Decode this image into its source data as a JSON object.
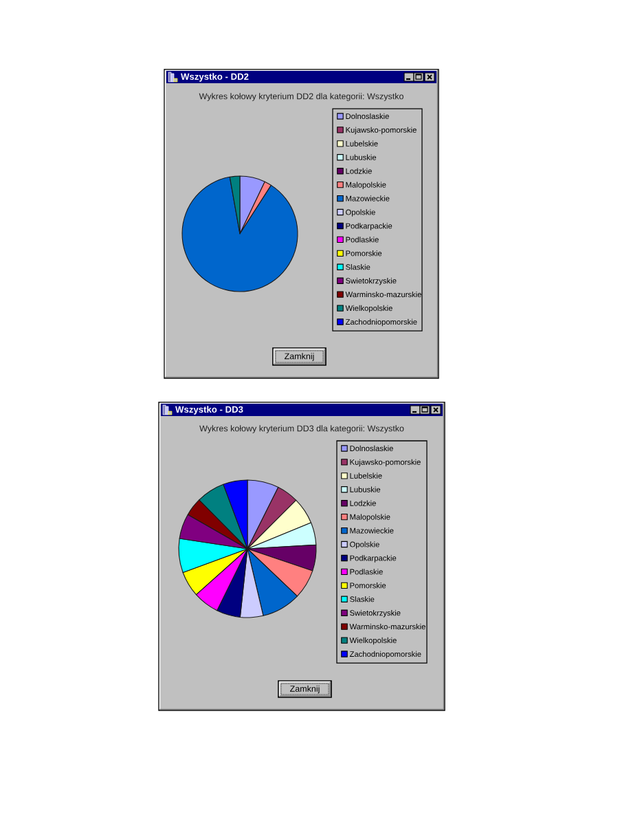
{
  "chart_data": [
    {
      "type": "pie",
      "title": "Wykres kołowy kryterium DD2 dla kategorii: Wszystko",
      "annotations": [
        "Wszystko - DD2",
        "Zamknij"
      ],
      "legend": "right",
      "categories": [
        "Dolnoslaskie",
        "Kujawsko-pomorskie",
        "Lubelskie",
        "Lubuskie",
        "Lodzkie",
        "Malopolskie",
        "Mazowieckie",
        "Opolskie",
        "Podkarpackie",
        "Podlaskie",
        "Pomorskie",
        "Slaskie",
        "Swietokrzyskie",
        "Warminsko-mazurskie",
        "Wielkopolskie",
        "Zachodniopomorskie"
      ],
      "values": [
        7.1,
        0,
        0,
        0,
        0,
        2.0,
        88.1,
        0,
        0,
        0,
        0,
        0,
        0,
        0,
        2.8,
        0
      ],
      "colors": [
        "#9999ff",
        "#993366",
        "#ffffcc",
        "#ccffff",
        "#660066",
        "#ff8080",
        "#0066cc",
        "#ccccff",
        "#000080",
        "#ff00ff",
        "#ffff00",
        "#00ffff",
        "#800080",
        "#800000",
        "#008080",
        "#0000ff"
      ]
    },
    {
      "type": "pie",
      "title": "Wykres kołowy kryterium DD3 dla kategorii: Wszystko",
      "annotations": [
        "Wszystko - DD3",
        "Zamknij"
      ],
      "legend": "right",
      "categories": [
        "Dolnoslaskie",
        "Kujawsko-pomorskie",
        "Lubelskie",
        "Lubuskie",
        "Lodzkie",
        "Malopolskie",
        "Mazowieckie",
        "Opolskie",
        "Podkarpackie",
        "Podlaskie",
        "Pomorskie",
        "Slaskie",
        "Swietokrzyskie",
        "Warminsko-mazurskie",
        "Wielkopolskie",
        "Zachodniopomorskie"
      ],
      "values": [
        7.4,
        5.1,
        6.3,
        5.3,
        6.1,
        6.9,
        9.2,
        5.4,
        5.6,
        6.1,
        6.0,
        8.0,
        5.9,
        4.3,
        6.7,
        5.7
      ],
      "colors": [
        "#9999ff",
        "#993366",
        "#ffffcc",
        "#ccffff",
        "#660066",
        "#ff8080",
        "#0066cc",
        "#ccccff",
        "#000080",
        "#ff00ff",
        "#ffff00",
        "#00ffff",
        "#800080",
        "#800000",
        "#008080",
        "#0000ff"
      ]
    }
  ]
}
